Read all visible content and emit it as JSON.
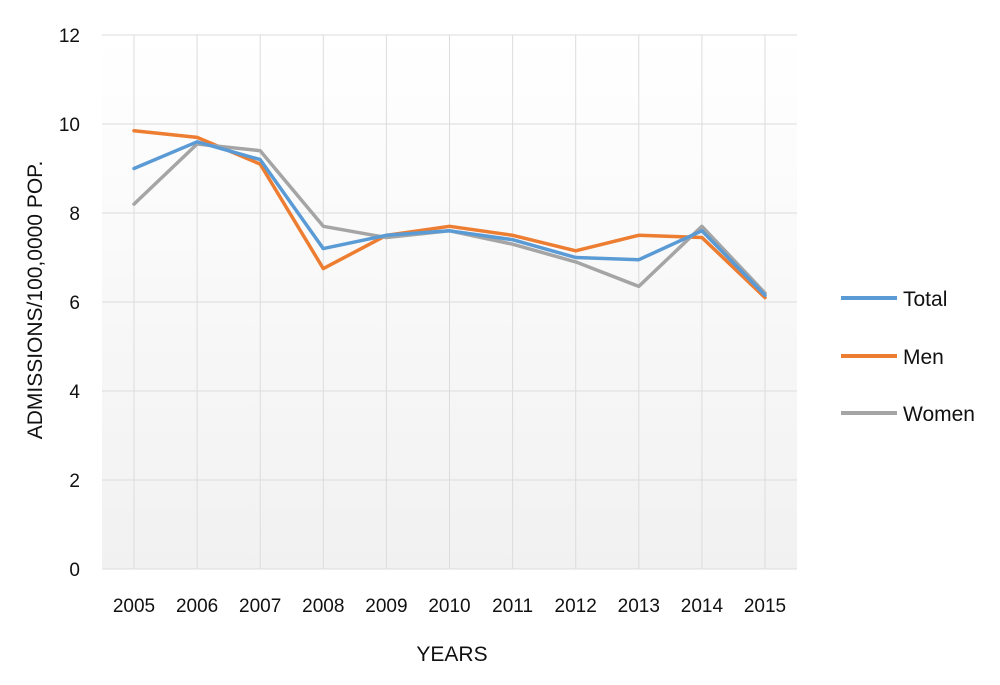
{
  "chart_data": {
    "type": "line",
    "title": "",
    "xlabel": "YEARS",
    "ylabel": "ADMISSIONS/100,0000 POP.",
    "categories": [
      "2005",
      "2006",
      "2007",
      "2008",
      "2009",
      "2010",
      "2011",
      "2012",
      "2013",
      "2014",
      "2015"
    ],
    "ylim": [
      0,
      12
    ],
    "yticks": [
      "0",
      "2",
      "4",
      "6",
      "8",
      "10",
      "12"
    ],
    "grid": true,
    "legend_position": "right",
    "series": [
      {
        "name": "Total",
        "color": "#5b9bd5",
        "values": [
          9.0,
          9.6,
          9.2,
          7.2,
          7.5,
          7.6,
          7.4,
          7.0,
          6.95,
          7.6,
          6.15
        ]
      },
      {
        "name": "Men",
        "color": "#ed7d31",
        "values": [
          9.85,
          9.7,
          9.1,
          6.75,
          7.5,
          7.7,
          7.5,
          7.15,
          7.5,
          7.45,
          6.1
        ]
      },
      {
        "name": "Women",
        "color": "#a5a5a5",
        "values": [
          8.2,
          9.55,
          9.4,
          7.7,
          7.45,
          7.6,
          7.3,
          6.9,
          6.35,
          7.7,
          6.2
        ]
      }
    ]
  }
}
